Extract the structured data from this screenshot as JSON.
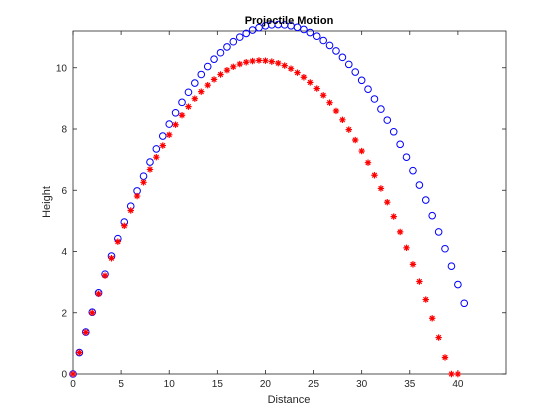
{
  "chart_data": {
    "type": "scatter",
    "title": "Projectile Motion",
    "xlabel": "Distance",
    "ylabel": "Height",
    "xlim": [
      0,
      45
    ],
    "ylim": [
      0,
      11.2
    ],
    "xticks": [
      0,
      5,
      10,
      15,
      20,
      25,
      30,
      35,
      40
    ],
    "yticks": [
      0,
      2,
      4,
      6,
      8,
      10
    ],
    "grid": false,
    "legend": "none",
    "colors": {
      "circles": "#0000ff",
      "stars": "#ff0000",
      "axes": "#262626"
    },
    "series": [
      {
        "marker": "circle",
        "color": "#0000ff",
        "x": [
          0.0,
          0.66,
          1.33,
          2.0,
          2.66,
          3.33,
          4.0,
          4.66,
          5.33,
          6.0,
          6.66,
          7.33,
          8.0,
          8.66,
          9.33,
          10.0,
          10.66,
          11.33,
          12.0,
          12.66,
          13.33,
          14.0,
          14.66,
          15.33,
          16.0,
          16.66,
          17.33,
          18.0,
          18.66,
          19.33,
          20.0,
          20.66,
          21.33,
          22.0,
          22.66,
          23.33,
          24.0,
          24.66,
          25.33,
          26.0,
          26.66,
          27.33,
          28.0,
          28.66,
          29.33,
          30.0,
          30.66,
          31.33,
          32.0,
          32.66,
          33.33,
          34.0,
          34.66,
          35.33,
          36.0,
          36.66,
          37.33,
          38.0,
          38.66,
          39.33,
          40.0,
          40.66
        ],
        "y": [
          0.0,
          0.7,
          1.37,
          2.02,
          2.65,
          3.26,
          3.85,
          4.42,
          4.96,
          5.48,
          5.98,
          6.46,
          6.92,
          7.35,
          7.77,
          8.16,
          8.53,
          8.87,
          9.2,
          9.5,
          9.78,
          10.04,
          10.28,
          10.49,
          10.68,
          10.85,
          11.0,
          11.12,
          11.23,
          11.31,
          11.37,
          11.4,
          11.41,
          11.4,
          11.37,
          11.32,
          11.25,
          11.15,
          11.03,
          10.89,
          10.73,
          10.55,
          10.34,
          10.11,
          9.86,
          9.59,
          9.3,
          8.98,
          8.65,
          8.29,
          7.91,
          7.5,
          7.08,
          6.64,
          6.17,
          5.68,
          5.17,
          4.64,
          4.09,
          3.52,
          2.92,
          2.31
        ]
      },
      {
        "marker": "star",
        "color": "#ff0000",
        "x": [
          0.0,
          0.66,
          1.33,
          2.0,
          2.66,
          3.33,
          4.0,
          4.66,
          5.33,
          6.0,
          6.66,
          7.33,
          8.0,
          8.66,
          9.33,
          10.0,
          10.66,
          11.33,
          12.0,
          12.66,
          13.33,
          14.0,
          14.66,
          15.33,
          16.0,
          16.66,
          17.33,
          18.0,
          18.66,
          19.33,
          20.0,
          20.66,
          21.33,
          22.0,
          22.66,
          23.33,
          24.0,
          24.66,
          25.33,
          26.0,
          26.66,
          27.33,
          28.0,
          28.66,
          29.33,
          30.0,
          30.66,
          31.33,
          32.0,
          32.66,
          33.33,
          34.0,
          34.66,
          35.33,
          36.0,
          36.66,
          37.33,
          38.0,
          38.66,
          39.33,
          40.0
        ],
        "y": [
          0.0,
          0.7,
          1.36,
          2.0,
          2.62,
          3.21,
          3.78,
          4.32,
          4.84,
          5.34,
          5.81,
          6.26,
          6.68,
          7.08,
          7.46,
          7.81,
          8.14,
          8.45,
          8.73,
          8.99,
          9.22,
          9.43,
          9.62,
          9.78,
          9.92,
          10.03,
          10.12,
          10.18,
          10.22,
          10.24,
          10.23,
          10.2,
          10.15,
          10.07,
          9.97,
          9.84,
          9.69,
          9.52,
          9.32,
          9.1,
          8.86,
          8.59,
          8.3,
          7.98,
          7.64,
          7.28,
          6.9,
          6.49,
          6.06,
          5.61,
          5.14,
          4.64,
          4.12,
          3.58,
          3.02,
          2.43,
          1.82,
          1.19,
          0.54,
          0.0,
          0.0
        ]
      }
    ]
  }
}
